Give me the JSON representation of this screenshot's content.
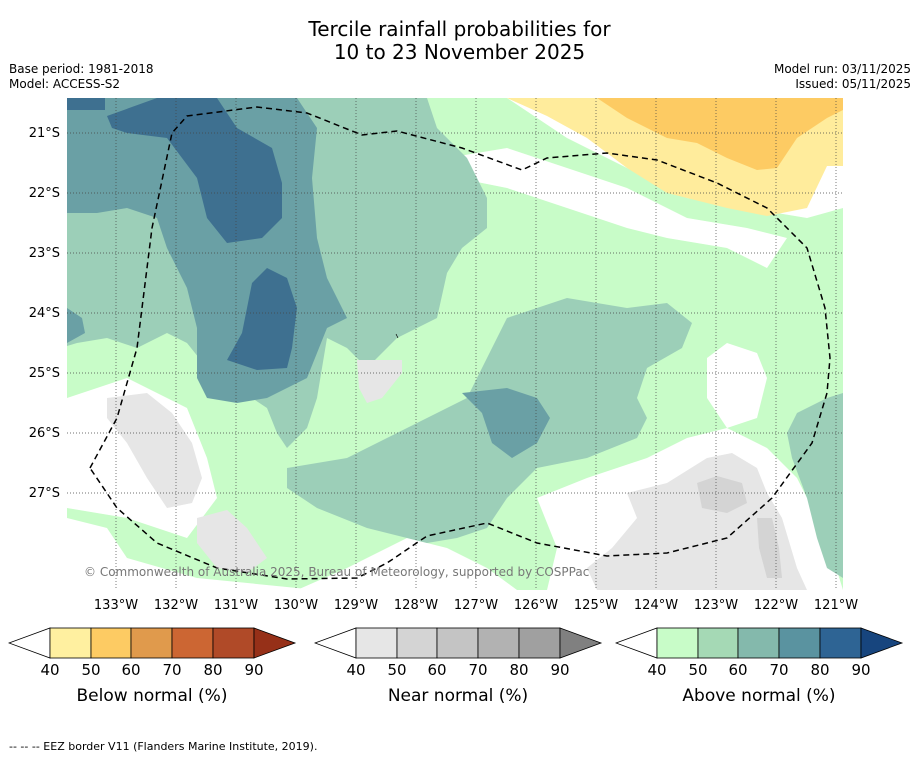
{
  "title_line1": "Tercile rainfall probabilities for",
  "title_line2": "10 to 23 November 2025",
  "base_period": "Base period: 1981-2018",
  "model": "Model: ACCESS-S2",
  "model_run": "Model run: 03/11/2025",
  "issued": "Issued: 05/11/2025",
  "lat_labels": [
    "21°S",
    "22°S",
    "23°S",
    "24°S",
    "25°S",
    "26°S",
    "27°S"
  ],
  "lon_labels": [
    "133°W",
    "132°W",
    "131°W",
    "130°W",
    "129°W",
    "128°W",
    "127°W",
    "126°W",
    "125°W",
    "124°W",
    "123°W",
    "122°W",
    "121°W"
  ],
  "copyright": "© Commonwealth of Australia 2025, Bureau of Meteorology, supported by COSPPac",
  "colorbars": [
    {
      "title": "Below normal (%)",
      "ticks": [
        "40",
        "50",
        "60",
        "70",
        "80",
        "90"
      ],
      "colors": [
        "#fff0a0",
        "#fdcb63",
        "#e09a4c",
        "#cc6633",
        "#b04a28",
        "#963018"
      ]
    },
    {
      "title": "Near normal (%)",
      "ticks": [
        "40",
        "50",
        "60",
        "70",
        "80",
        "90"
      ],
      "colors": [
        "#e6e6e6",
        "#d4d4d4",
        "#c4c4c4",
        "#b2b2b2",
        "#a0a0a0",
        "#808080"
      ]
    },
    {
      "title": "Above normal (%)",
      "ticks": [
        "40",
        "50",
        "60",
        "70",
        "80",
        "90"
      ],
      "colors": [
        "#c8fcc8",
        "#a5d9b5",
        "#84b9ac",
        "#5a93a0",
        "#2e6494",
        "#17457e"
      ]
    }
  ],
  "map_colors": {
    "above_40": "#c8fcc8",
    "above_50": "#9ccfb8",
    "above_60": "#6aa0a5",
    "above_70": "#3e7090",
    "below_40": "#ffec9c",
    "below_50": "#fdcb63",
    "near_40": "#e6e6e6",
    "near_50": "#d4d4d4"
  },
  "footer": "--  --  -- EEZ border V11 (Flanders Marine Institute, 2019)."
}
